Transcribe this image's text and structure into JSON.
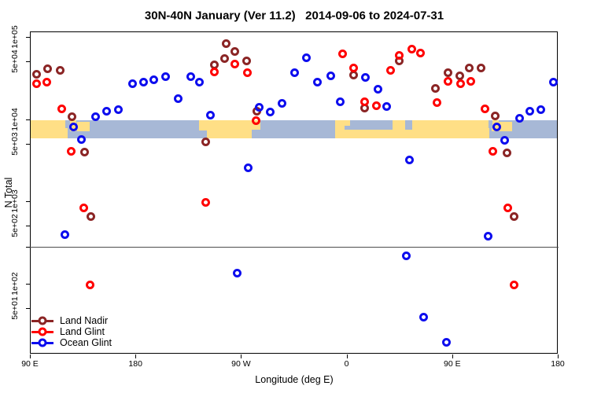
{
  "chart_data": {
    "type": "scatter",
    "title": "30N-40N January (Ver 11.2)   2014-09-06 to 2024-07-31",
    "xlabel": "Longitude (deg E)",
    "ylabel": "N Total",
    "x_axis": {
      "min": 90,
      "max": 540,
      "ticks": [
        90,
        180,
        270,
        360,
        450,
        540
      ],
      "tick_labels": [
        "90 E",
        "180",
        "90 W",
        "0",
        "90 E",
        "180"
      ],
      "note": "longitude axis wraps eastward: 90E, 180, 90W, 0, 90E, 180"
    },
    "y_axis": {
      "scale": "log",
      "ticks": [
        100000,
        50000,
        10000,
        5000,
        1000,
        500,
        100,
        50
      ],
      "tick_labels": [
        "1e+05",
        "5e+04",
        "1e+04",
        "5e+03",
        "1e+03",
        "5e+02",
        "1e+02",
        "5e+01"
      ],
      "grid": false
    },
    "separator_line_n": 280,
    "map_band": {
      "description": "30N-40N latitude world-map strip drawn across the plot",
      "top_n": 9700,
      "bottom_n": 5800,
      "land_color": "#FFDF86",
      "ocean_color": "#A7B8D6",
      "land_segments": [
        [
          90,
          122.5,
          0,
          1
        ],
        [
          124,
          129.5,
          0,
          0.6
        ],
        [
          130,
          141,
          0.1,
          0.5
        ],
        [
          234,
          241,
          0,
          0.55
        ],
        [
          241,
          279,
          0,
          1
        ],
        [
          279,
          286.5,
          0,
          0.5
        ],
        [
          350.5,
          358,
          0,
          1
        ],
        [
          358,
          363,
          0,
          0.3
        ],
        [
          358,
          399,
          0.5,
          0.5
        ],
        [
          399,
          481.5,
          0,
          1
        ],
        [
          484,
          489.5,
          0,
          0.6
        ],
        [
          490,
          501,
          0.1,
          0.5
        ]
      ],
      "ocean_patches": [
        [
          120.5,
          124,
          0,
          0.45
        ],
        [
          410,
          416,
          0,
          0.5
        ],
        [
          481,
          484.5,
          0,
          0.45
        ]
      ]
    },
    "legend_position": "bottom-left",
    "series": [
      {
        "name": "Land Nadir",
        "color": "#8B2525",
        "points": [
          [
            95.4,
            35500
          ],
          [
            105.4,
            41400
          ],
          [
            115.5,
            39600
          ],
          [
            125.6,
            10800
          ],
          [
            136.8,
            3980
          ],
          [
            141.7,
            650
          ],
          [
            239.8,
            5330
          ],
          [
            247.2,
            45500
          ],
          [
            255.9,
            54000
          ],
          [
            257.2,
            83700
          ],
          [
            264.6,
            65800
          ],
          [
            274.7,
            51600
          ],
          [
            283.4,
            12600
          ],
          [
            366.1,
            34000
          ],
          [
            375.3,
            13700
          ],
          [
            405.2,
            51600
          ],
          [
            435.9,
            23500
          ],
          [
            446.2,
            36500
          ],
          [
            456.3,
            33400
          ],
          [
            464.6,
            42300
          ],
          [
            474.9,
            42300
          ],
          [
            486.5,
            11000
          ],
          [
            497.0,
            3920
          ],
          [
            502.9,
            650
          ]
        ]
      },
      {
        "name": "Land Glint",
        "color": "#FF0000",
        "points": [
          [
            95.4,
            26700
          ],
          [
            104.1,
            28400
          ],
          [
            116.9,
            13200
          ],
          [
            124.9,
            4040
          ],
          [
            136.1,
            834
          ],
          [
            141.2,
            96
          ],
          [
            240.2,
            978
          ],
          [
            247.2,
            37300
          ],
          [
            264.6,
            46500
          ],
          [
            275.4,
            36300
          ],
          [
            282.8,
            9610
          ],
          [
            356.6,
            61600
          ],
          [
            366.1,
            41700
          ],
          [
            375.5,
            16100
          ],
          [
            385.1,
            14700
          ],
          [
            397.8,
            39400
          ],
          [
            404.6,
            59800
          ],
          [
            415.8,
            71800
          ],
          [
            423.1,
            64300
          ],
          [
            437.2,
            15800
          ],
          [
            446.2,
            28900
          ],
          [
            456.9,
            26800
          ],
          [
            465.9,
            28900
          ],
          [
            478.2,
            13200
          ],
          [
            484.9,
            4040
          ],
          [
            497.2,
            834
          ],
          [
            502.9,
            96
          ]
        ]
      },
      {
        "name": "Ocean Glint",
        "color": "#0D0DEE",
        "points": [
          [
            120.0,
            388
          ],
          [
            127.1,
            7980
          ],
          [
            133.9,
            5610
          ],
          [
            145.7,
            10600
          ],
          [
            155.6,
            12400
          ],
          [
            165.2,
            13100
          ],
          [
            177.3,
            26700
          ],
          [
            186.7,
            28400
          ],
          [
            195.4,
            29800
          ],
          [
            205.5,
            33200
          ],
          [
            216.3,
            17900
          ],
          [
            227.0,
            33200
          ],
          [
            234.4,
            27900
          ],
          [
            243.6,
            11100
          ],
          [
            266.6,
            133
          ],
          [
            276.0,
            2560
          ],
          [
            285.7,
            13900
          ],
          [
            295.0,
            12100
          ],
          [
            304.7,
            15500
          ],
          [
            315.7,
            37100
          ],
          [
            325.7,
            55200
          ],
          [
            335.1,
            27900
          ],
          [
            346.6,
            33400
          ],
          [
            354.6,
            16400
          ],
          [
            376.1,
            32500
          ],
          [
            386.9,
            22900
          ],
          [
            394.1,
            14100
          ],
          [
            413.3,
            3150
          ],
          [
            410.8,
            214
          ],
          [
            425.6,
            39
          ],
          [
            445.1,
            19
          ],
          [
            480.9,
            377
          ],
          [
            488.1,
            7980
          ],
          [
            494.8,
            5530
          ],
          [
            507.3,
            10200
          ],
          [
            516.3,
            12400
          ],
          [
            525.7,
            13100
          ],
          [
            536.0,
            27900
          ]
        ]
      }
    ]
  }
}
